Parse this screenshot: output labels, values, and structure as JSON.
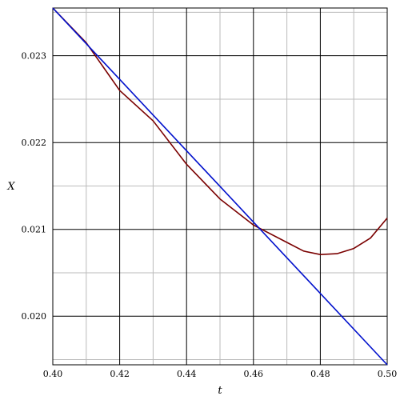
{
  "chart_data": {
    "type": "line",
    "xlabel": "t",
    "ylabel": "X",
    "xlim": [
      0.4,
      0.5
    ],
    "ylim": [
      0.01944,
      0.02355
    ],
    "x_ticks": [
      0.4,
      0.42,
      0.44,
      0.46,
      0.48,
      0.5
    ],
    "x_tick_labels": [
      "0.40",
      "0.42",
      "0.44",
      "0.46",
      "0.48",
      "0.50"
    ],
    "y_ticks": [
      0.02,
      0.021,
      0.022,
      0.023
    ],
    "y_tick_labels": [
      "0.020",
      "0.021",
      "0.022",
      "0.023"
    ],
    "grid": true,
    "series": [
      {
        "color": "#7a0000",
        "x": [
          0.4,
          0.41,
          0.42,
          0.43,
          0.44,
          0.45,
          0.46,
          0.47,
          0.475,
          0.48,
          0.485,
          0.49,
          0.495,
          0.5
        ],
        "y": [
          0.02355,
          0.02315,
          0.0226,
          0.02225,
          0.02175,
          0.02135,
          0.02105,
          0.02085,
          0.02075,
          0.02071,
          0.02072,
          0.02078,
          0.0209,
          0.02113
        ]
      },
      {
        "color": "#0010cc",
        "x": [
          0.4,
          0.5
        ],
        "y": [
          0.02355,
          0.01944
        ]
      }
    ]
  }
}
